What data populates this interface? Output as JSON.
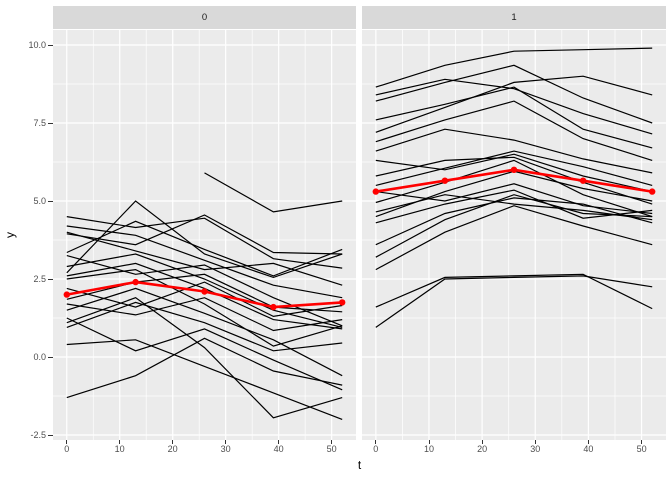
{
  "chart_data": {
    "type": "line",
    "title": "",
    "xlabel": "t",
    "ylabel": "y",
    "x_waves": [
      0,
      13,
      26,
      39,
      52
    ],
    "xticks": [
      0,
      10,
      20,
      30,
      40,
      50
    ],
    "yticks": [
      10.0,
      7.5,
      5.0,
      2.5,
      0.0,
      -2.5
    ],
    "ytick_labels": [
      "10.0",
      "7.5",
      "5.0",
      "2.5",
      "0.0",
      "-2.5"
    ],
    "x_minor": [
      5,
      15,
      25,
      35,
      45
    ],
    "y_minor": [
      8.75,
      6.25,
      3.75,
      1.25,
      -1.25
    ],
    "xlim": [
      -2.6,
      54.6
    ],
    "ylim": [
      -2.66,
      10.48
    ],
    "grid": true,
    "legend": false,
    "colors": {
      "mean_line": "#FF0000",
      "series_line": "#000000",
      "panel_bg": "#EBEBEB",
      "strip_bg": "#D9D9D9",
      "grid_line": "#FFFFFF",
      "tick_text": "#4D4D4D"
    },
    "facets": [
      {
        "label": "0",
        "mean": [
          2.0,
          2.4,
          2.1,
          1.6,
          1.75
        ],
        "lines": [
          [
            4.5,
            4.15,
            4.45,
            3.15,
            2.85
          ],
          [
            4.2,
            3.9,
            3.1,
            2.3,
            1.9
          ],
          [
            3.95,
            3.6,
            4.55,
            3.35,
            3.3
          ],
          [
            3.35,
            4.35,
            3.45,
            2.6,
            3.45
          ],
          [
            3.25,
            2.65,
            2.95,
            1.9,
            1.0
          ],
          [
            2.9,
            3.3,
            2.5,
            1.5,
            0.95
          ],
          [
            2.7,
            5.0,
            3.3,
            2.55,
            3.3
          ],
          [
            2.6,
            3.0,
            2.2,
            1.2,
            0.9
          ],
          [
            1.85,
            2.4,
            2.65,
            1.6,
            1.45
          ],
          [
            1.7,
            1.35,
            1.9,
            0.85,
            1.2
          ],
          [
            1.5,
            2.2,
            1.4,
            0.55,
            -0.6
          ],
          [
            1.25,
            0.2,
            0.9,
            -0.1,
            -1.05
          ],
          [
            1.1,
            1.9,
            0.3,
            -1.95,
            -1.3
          ],
          [
            0.4,
            0.55,
            -0.3,
            -1.15,
            -2.0
          ],
          [
            -1.3,
            -0.6,
            0.6,
            -0.45,
            -0.9
          ],
          [
            2.5,
            2.8,
            1.7,
            0.35,
            1.0
          ],
          [
            4.0,
            3.4,
            2.8,
            3.0,
            2.3
          ],
          [
            null,
            null,
            5.9,
            4.65,
            5.0
          ],
          [
            2.2,
            1.6,
            2.4,
            1.3,
            1.65
          ],
          [
            0.95,
            1.75,
            1.1,
            0.2,
            0.45
          ]
        ]
      },
      {
        "label": "1",
        "mean": [
          5.3,
          5.65,
          6.0,
          5.65,
          5.3
        ],
        "lines": [
          [
            8.65,
            9.35,
            9.8,
            9.85,
            9.9
          ],
          [
            8.2,
            8.8,
            9.35,
            8.3,
            7.5
          ],
          [
            8.4,
            8.9,
            8.6,
            7.8,
            7.15
          ],
          [
            7.6,
            8.1,
            8.65,
            7.3,
            6.7
          ],
          [
            7.2,
            8.0,
            8.8,
            9.0,
            8.4
          ],
          [
            6.9,
            7.6,
            8.2,
            7.0,
            6.3
          ],
          [
            6.6,
            7.3,
            6.95,
            6.35,
            5.9
          ],
          [
            6.3,
            6.0,
            6.5,
            5.8,
            5.3
          ],
          [
            5.8,
            6.3,
            6.4,
            5.6,
            4.9
          ],
          [
            5.3,
            5.0,
            5.55,
            4.85,
            4.6
          ],
          [
            4.95,
            5.6,
            6.3,
            5.2,
            4.5
          ],
          [
            4.65,
            5.2,
            4.9,
            4.7,
            4.4
          ],
          [
            4.3,
            4.9,
            5.35,
            4.45,
            4.7
          ],
          [
            3.2,
            4.4,
            5.2,
            4.6,
            4.5
          ],
          [
            2.8,
            4.0,
            4.85,
            4.2,
            3.6
          ],
          [
            1.6,
            2.55,
            2.6,
            2.65,
            1.55
          ],
          [
            0.95,
            2.5,
            2.55,
            2.6,
            2.25
          ],
          [
            5.5,
            6.05,
            6.6,
            6.1,
            5.5
          ],
          [
            4.5,
            5.3,
            5.95,
            5.4,
            5.0
          ],
          [
            3.6,
            4.6,
            5.1,
            4.9,
            4.3
          ]
        ]
      }
    ]
  }
}
